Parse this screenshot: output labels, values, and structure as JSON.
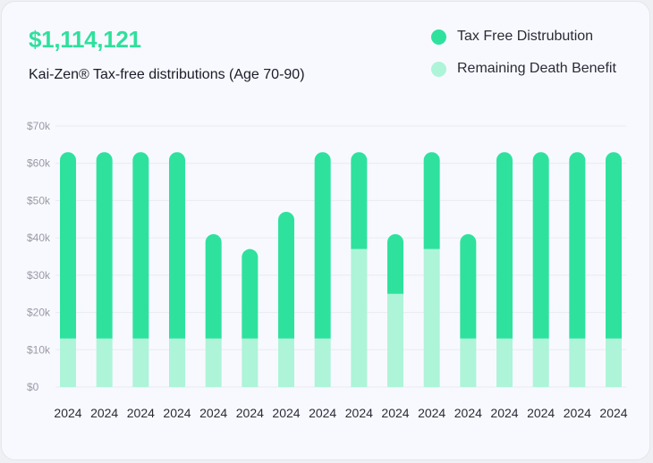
{
  "header": {
    "total": "$1,114,121",
    "subtitle": "Kai-Zen® Tax-free distributions (Age 70-90)"
  },
  "colors": {
    "tax_free": "#2ee29e",
    "death_benefit": "#aef4d8",
    "grid": "#e9ebf1"
  },
  "chart_data": {
    "type": "bar",
    "stacked": true,
    "categories": [
      "2024",
      "2024",
      "2024",
      "2024",
      "2024",
      "2024",
      "2024",
      "2024",
      "2024",
      "2024",
      "2024",
      "2024",
      "2024",
      "2024",
      "2024",
      "2024"
    ],
    "series": [
      {
        "name": "Remaining Death Benefit",
        "color": "#aef4d8",
        "values": [
          13000,
          13000,
          13000,
          13000,
          13000,
          13000,
          13000,
          13000,
          37000,
          25000,
          37000,
          13000,
          13000,
          13000,
          13000,
          13000
        ]
      },
      {
        "name": "Tax Free Distrubution",
        "color": "#2ee29e",
        "values": [
          50000,
          50000,
          50000,
          50000,
          28000,
          24000,
          34000,
          50000,
          26000,
          16000,
          26000,
          28000,
          50000,
          50000,
          50000,
          50000
        ]
      }
    ],
    "yticks": [
      "$0",
      "$10k",
      "$20k",
      "$30k",
      "$40k",
      "$50k",
      "$60k",
      "$70k"
    ],
    "ylim": [
      0,
      70000
    ],
    "grid": true,
    "legend_position": "top-right"
  }
}
